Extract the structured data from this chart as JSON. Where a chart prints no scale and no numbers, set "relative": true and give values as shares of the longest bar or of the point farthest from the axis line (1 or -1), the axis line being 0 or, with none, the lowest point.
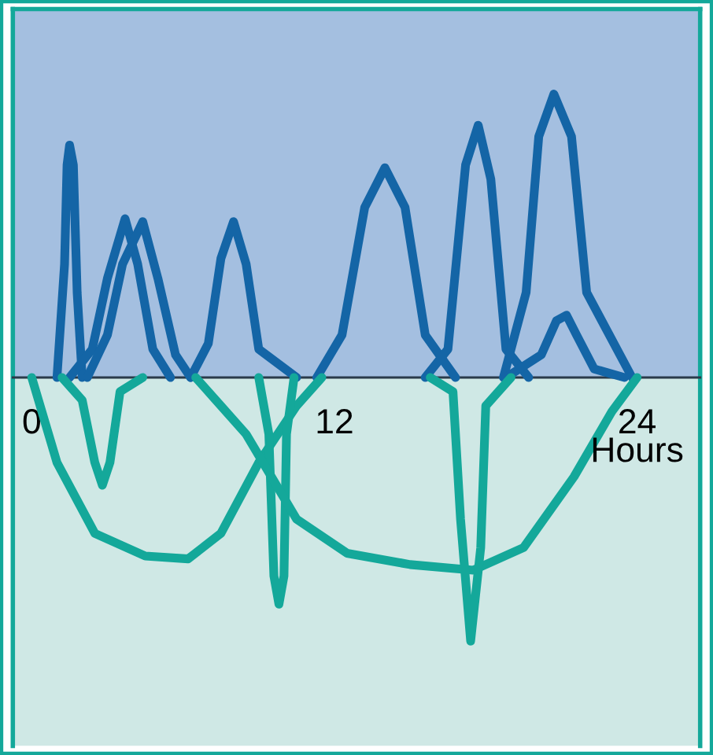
{
  "chart_data": {
    "type": "line",
    "relative": true,
    "xlabel": "Hours",
    "xlim": [
      -0.75,
      26.5
    ],
    "xticks": [
      0,
      12,
      24
    ],
    "grid": false,
    "legend": false,
    "marker": "none",
    "line_style": "solid",
    "bands": [
      {
        "axis": "y",
        "from": 0,
        "to": 1.3,
        "color": "#a4bfe0"
      },
      {
        "axis": "y",
        "from": -1.3,
        "to": 0,
        "color": "#cfe8e5"
      }
    ],
    "series": [
      {
        "color": "#1465a6",
        "x": [
          1.0,
          1.3,
          1.4,
          1.5,
          1.65,
          1.8,
          2.0
        ],
        "values": [
          0,
          0.4,
          0.75,
          0.82,
          0.75,
          0.3,
          0
        ]
      },
      {
        "color": "#1465a6",
        "x": [
          1.5,
          2.4,
          3.0,
          3.7,
          4.2,
          4.8,
          5.5
        ],
        "values": [
          0,
          0.1,
          0.35,
          0.56,
          0.4,
          0.1,
          0
        ]
      },
      {
        "color": "#1465a6",
        "x": [
          2.2,
          3.0,
          3.6,
          4.4,
          5.0,
          5.7,
          6.3
        ],
        "values": [
          0,
          0.15,
          0.4,
          0.55,
          0.35,
          0.08,
          0
        ]
      },
      {
        "color": "#1465a6",
        "x": [
          6.3,
          7.0,
          7.5,
          8.0,
          8.5,
          9.0,
          10.5
        ],
        "values": [
          0,
          0.12,
          0.42,
          0.55,
          0.4,
          0.1,
          0
        ]
      },
      {
        "color": "#1465a6",
        "x": [
          11.3,
          12.3,
          13.2,
          14.0,
          14.8,
          15.6,
          16.8
        ],
        "values": [
          0,
          0.15,
          0.6,
          0.74,
          0.6,
          0.15,
          0
        ]
      },
      {
        "color": "#1465a6",
        "x": [
          15.6,
          16.5,
          17.2,
          17.7,
          18.2,
          18.8,
          19.7
        ],
        "values": [
          0,
          0.1,
          0.75,
          0.89,
          0.7,
          0.1,
          0
        ]
      },
      {
        "color": "#1465a6",
        "x": [
          18.7,
          19.6,
          20.1,
          20.7,
          21.4,
          22.0,
          23.8
        ],
        "values": [
          0,
          0.3,
          0.85,
          1.0,
          0.85,
          0.3,
          0
        ]
      },
      {
        "color": "#1465a6",
        "x": [
          18.8,
          20.2,
          20.8,
          21.2,
          21.6,
          22.3,
          23.5
        ],
        "values": [
          0,
          0.08,
          0.2,
          0.22,
          0.15,
          0.03,
          0
        ]
      },
      {
        "color": "#14a89a",
        "x": [
          1.2,
          2.0,
          2.5,
          2.8,
          3.1,
          3.5,
          4.4
        ],
        "values": [
          0,
          -0.08,
          -0.3,
          -0.38,
          -0.3,
          -0.05,
          0
        ]
      },
      {
        "color": "#14a89a",
        "x": [
          0,
          1.0,
          2.5,
          4.5,
          6.2,
          7.5,
          9.0,
          10.5,
          11.5
        ],
        "values": [
          0,
          -0.3,
          -0.55,
          -0.63,
          -0.64,
          -0.55,
          -0.3,
          -0.1,
          0
        ]
      },
      {
        "color": "#14a89a",
        "x": [
          9.0,
          9.4,
          9.6,
          9.8,
          10.0,
          10.1,
          10.4
        ],
        "values": [
          0,
          -0.2,
          -0.7,
          -0.8,
          -0.7,
          -0.2,
          0
        ]
      },
      {
        "color": "#14a89a",
        "x": [
          6.5,
          8.5,
          10.5,
          12.5,
          15.0,
          17.5,
          19.5,
          21.5,
          23.0,
          24.0
        ],
        "values": [
          0,
          -0.2,
          -0.5,
          -0.62,
          -0.66,
          -0.68,
          -0.6,
          -0.35,
          -0.12,
          0
        ]
      },
      {
        "color": "#14a89a",
        "x": [
          15.8,
          16.7,
          17.0,
          17.4,
          17.8,
          18.0,
          19.0
        ],
        "values": [
          0,
          -0.05,
          -0.5,
          -0.93,
          -0.6,
          -0.1,
          0
        ]
      }
    ]
  }
}
